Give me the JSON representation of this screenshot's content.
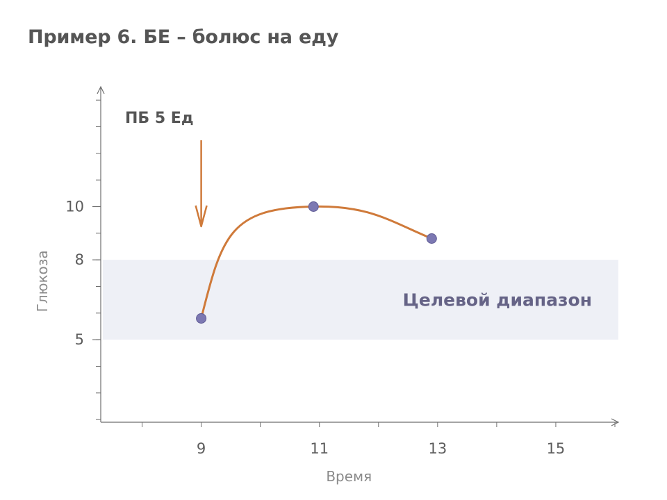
{
  "title": "Пример 6. БЕ – болюс на еду",
  "chart_data": {
    "type": "line",
    "title": "Пример 6. БЕ – болюс на еду",
    "xlabel": "Время",
    "ylabel": "Глюкоза",
    "x_ticks": [
      9,
      11,
      13,
      15
    ],
    "y_ticks": [
      5,
      8,
      10
    ],
    "xlim": [
      7.3,
      16
    ],
    "ylim": [
      1.9,
      14.5
    ],
    "grid": false,
    "series": [
      {
        "x": [
          9,
          10.9,
          12.9
        ],
        "y": [
          5.8,
          10.0,
          8.8
        ]
      }
    ],
    "target_range": {
      "low": 5,
      "high": 8,
      "label": "Целевой диапазон"
    },
    "annotations": [
      {
        "text": "ПБ 5 Ед",
        "x": 9,
        "arrow": "down"
      }
    ],
    "colors": {
      "line": "#cf7a3a",
      "points": "#7c78b2",
      "band": "#eef0f6",
      "band_label": "#656386",
      "axis": "#6e6e6e",
      "arrow": "#cf7a3a"
    }
  }
}
